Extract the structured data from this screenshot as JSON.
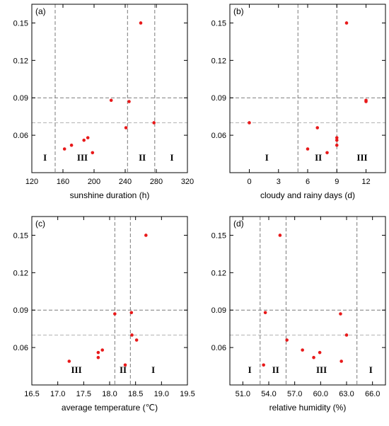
{
  "chart_data": [
    {
      "panel_label": "(a)",
      "type": "scatter",
      "xlabel": "sunshine duration (h)",
      "xlim": [
        120,
        320
      ],
      "xticks": [
        120,
        160,
        200,
        240,
        280,
        320
      ],
      "xtick_labels": [
        "120",
        "160",
        "200",
        "240",
        "280",
        "320"
      ],
      "ylim": [
        0.03,
        0.165
      ],
      "yticks": [
        0.06,
        0.09,
        0.12,
        0.15
      ],
      "ytick_labels": [
        "0.06",
        "0.09",
        "0.12",
        "0.15"
      ],
      "hlines_dark": [
        0.09
      ],
      "hlines_light": [
        0.07
      ],
      "vlines": [
        150,
        243,
        278
      ],
      "zones": [
        {
          "label": "I",
          "x": 137
        },
        {
          "label": "III",
          "x": 185
        },
        {
          "label": "II",
          "x": 262
        },
        {
          "label": "I",
          "x": 300
        }
      ],
      "points": [
        {
          "x": 162,
          "y": 0.049
        },
        {
          "x": 171,
          "y": 0.052
        },
        {
          "x": 187,
          "y": 0.056
        },
        {
          "x": 192,
          "y": 0.058
        },
        {
          "x": 198,
          "y": 0.046
        },
        {
          "x": 222,
          "y": 0.088
        },
        {
          "x": 241,
          "y": 0.066
        },
        {
          "x": 245,
          "y": 0.087
        },
        {
          "x": 260,
          "y": 0.15
        },
        {
          "x": 277,
          "y": 0.07
        }
      ]
    },
    {
      "panel_label": "(b)",
      "type": "scatter",
      "xlabel": "cloudy and rainy days (d)",
      "xlim": [
        -2,
        14
      ],
      "xticks": [
        0,
        3,
        6,
        9,
        12
      ],
      "xtick_labels": [
        "0",
        "3",
        "6",
        "9",
        "12"
      ],
      "ylim": [
        0.03,
        0.165
      ],
      "yticks": [
        0.06,
        0.09,
        0.12,
        0.15
      ],
      "ytick_labels": [
        "0.06",
        "0.09",
        "0.12",
        "0.15"
      ],
      "hlines_dark": [
        0.09
      ],
      "hlines_light": [
        0.07
      ],
      "vlines": [
        5,
        9
      ],
      "zones": [
        {
          "label": "I",
          "x": 1.8
        },
        {
          "label": "II",
          "x": 7.1
        },
        {
          "label": "III",
          "x": 11.6
        }
      ],
      "points": [
        {
          "x": 0,
          "y": 0.07
        },
        {
          "x": 6,
          "y": 0.049
        },
        {
          "x": 7,
          "y": 0.066
        },
        {
          "x": 8,
          "y": 0.046
        },
        {
          "x": 9,
          "y": 0.052
        },
        {
          "x": 9,
          "y": 0.056
        },
        {
          "x": 9,
          "y": 0.058
        },
        {
          "x": 10,
          "y": 0.15
        },
        {
          "x": 12,
          "y": 0.087
        },
        {
          "x": 12,
          "y": 0.088
        }
      ]
    },
    {
      "panel_label": "(c)",
      "type": "scatter",
      "xlabel": "average temperature (℃)",
      "xlim": [
        16.5,
        19.5
      ],
      "xticks": [
        16.5,
        17.0,
        17.5,
        18.0,
        18.5,
        19.0,
        19.5
      ],
      "xtick_labels": [
        "16.5",
        "17.0",
        "17.5",
        "18.0",
        "18.5",
        "19.0",
        "19.5"
      ],
      "ylim": [
        0.03,
        0.165
      ],
      "yticks": [
        0.06,
        0.09,
        0.12,
        0.15
      ],
      "ytick_labels": [
        "0.06",
        "0.09",
        "0.12",
        "0.15"
      ],
      "hlines_dark": [
        0.09
      ],
      "hlines_light": [
        0.07
      ],
      "vlines": [
        18.1,
        18.4
      ],
      "zones": [
        {
          "label": "III",
          "x": 17.36
        },
        {
          "label": "II",
          "x": 18.26
        },
        {
          "label": "I",
          "x": 18.84
        }
      ],
      "points": [
        {
          "x": 17.22,
          "y": 0.049
        },
        {
          "x": 17.78,
          "y": 0.052
        },
        {
          "x": 17.78,
          "y": 0.056
        },
        {
          "x": 17.86,
          "y": 0.058
        },
        {
          "x": 18.1,
          "y": 0.087
        },
        {
          "x": 18.3,
          "y": 0.046
        },
        {
          "x": 18.42,
          "y": 0.088
        },
        {
          "x": 18.43,
          "y": 0.07
        },
        {
          "x": 18.52,
          "y": 0.066
        },
        {
          "x": 18.7,
          "y": 0.15
        }
      ]
    },
    {
      "panel_label": "(d)",
      "type": "scatter",
      "xlabel": "relative humidity (%)",
      "xlim": [
        49.5,
        67.5
      ],
      "xticks": [
        51,
        54,
        57,
        60,
        63,
        66
      ],
      "xtick_labels": [
        "51.0",
        "54.0",
        "57.0",
        "60.0",
        "63.0",
        "66.0"
      ],
      "ylim": [
        0.03,
        0.165
      ],
      "yticks": [
        0.06,
        0.09,
        0.12,
        0.15
      ],
      "ytick_labels": [
        "0.06",
        "0.09",
        "0.12",
        "0.15"
      ],
      "hlines_dark": [
        0.09
      ],
      "hlines_light": [
        0.07
      ],
      "vlines": [
        53,
        56,
        64.2
      ],
      "zones": [
        {
          "label": "I",
          "x": 51.8
        },
        {
          "label": "II",
          "x": 54.8
        },
        {
          "label": "III",
          "x": 60.1
        },
        {
          "label": "I",
          "x": 65.8
        }
      ],
      "points": [
        {
          "x": 53.4,
          "y": 0.046
        },
        {
          "x": 53.6,
          "y": 0.088
        },
        {
          "x": 55.3,
          "y": 0.15
        },
        {
          "x": 56.1,
          "y": 0.066
        },
        {
          "x": 57.9,
          "y": 0.058
        },
        {
          "x": 59.2,
          "y": 0.052
        },
        {
          "x": 59.9,
          "y": 0.056
        },
        {
          "x": 62.3,
          "y": 0.087
        },
        {
          "x": 62.4,
          "y": 0.049
        },
        {
          "x": 63.0,
          "y": 0.07
        }
      ]
    }
  ],
  "colors": {
    "point": "#e8191a",
    "frame": "#000000",
    "dark_dash": "#7a7a7a",
    "light_dash": "#b4b4b4"
  }
}
